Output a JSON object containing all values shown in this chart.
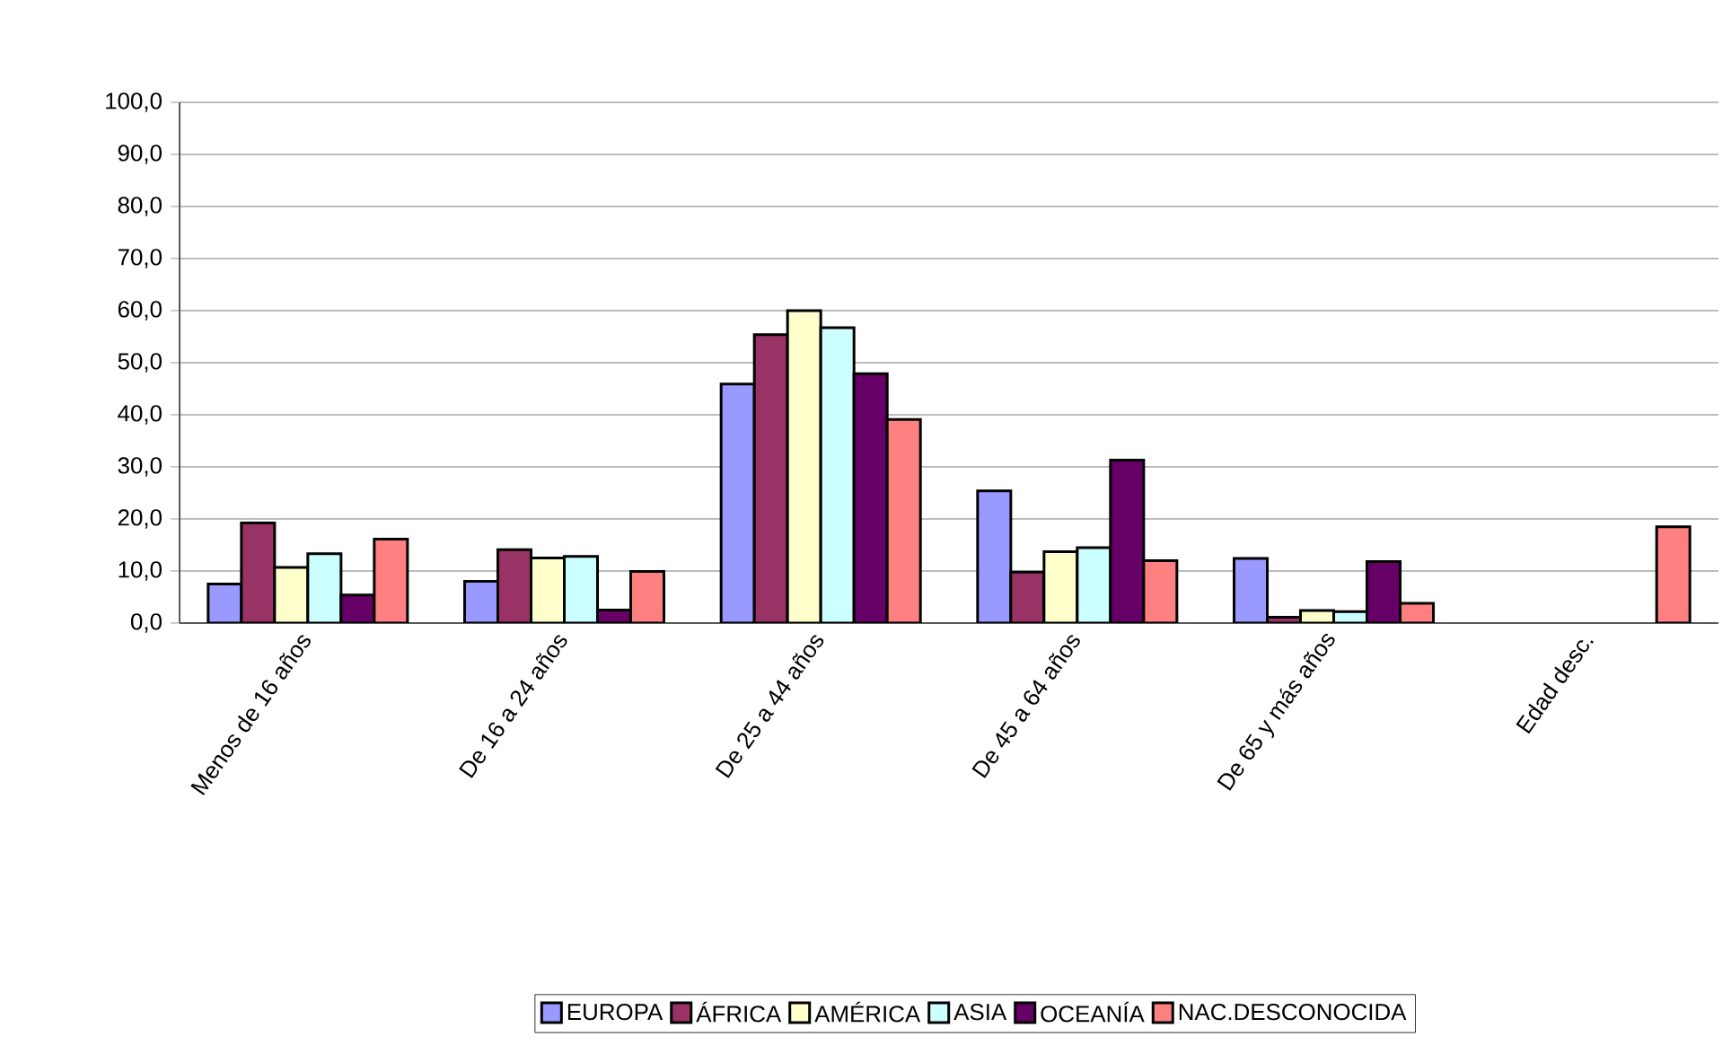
{
  "chart_data": {
    "type": "bar",
    "categories": [
      "Menos de 16 años",
      "De 16 a 24 años",
      "De 25 a 44 años",
      "De 45 a 64 años",
      "De 65 y más años",
      "Edad desc."
    ],
    "series": [
      {
        "name": "EUROPA",
        "color": "#9999ff",
        "values": [
          7.5,
          8.0,
          45.9,
          25.4,
          12.4,
          null
        ]
      },
      {
        "name": "ÁFRICA",
        "color": "#993366",
        "values": [
          19.2,
          14.1,
          55.4,
          9.8,
          1.1,
          null
        ]
      },
      {
        "name": "AMÉRICA",
        "color": "#ffffcc",
        "values": [
          10.7,
          12.5,
          60.0,
          13.7,
          2.4,
          null
        ]
      },
      {
        "name": "ASIA",
        "color": "#ccffff",
        "values": [
          13.3,
          12.8,
          56.7,
          14.5,
          2.2,
          null
        ]
      },
      {
        "name": "OCEANÍA",
        "color": "#660066",
        "values": [
          5.4,
          2.5,
          47.9,
          31.3,
          11.8,
          null
        ]
      },
      {
        "name": "NAC.DESCONOCIDA",
        "color": "#ff8080",
        "values": [
          16.1,
          9.9,
          39.1,
          12.0,
          3.8,
          18.5
        ]
      }
    ],
    "ylim": [
      0,
      100
    ],
    "yticks": [
      {
        "value": 0,
        "label": "0,0"
      },
      {
        "value": 10,
        "label": "10,0"
      },
      {
        "value": 20,
        "label": "20,0"
      },
      {
        "value": 30,
        "label": "30,0"
      },
      {
        "value": 40,
        "label": "40,0"
      },
      {
        "value": 50,
        "label": "50,0"
      },
      {
        "value": 60,
        "label": "60,0"
      },
      {
        "value": 70,
        "label": "70,0"
      },
      {
        "value": 80,
        "label": "80,0"
      },
      {
        "value": 90,
        "label": "90,0"
      },
      {
        "value": 100,
        "label": "100,0"
      }
    ],
    "grid": "y",
    "legend": "bottom"
  }
}
